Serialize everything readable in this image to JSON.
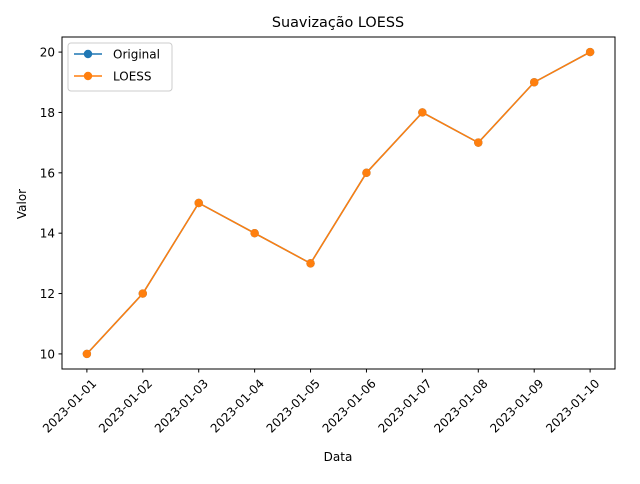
{
  "chart_data": {
    "type": "line",
    "title": "Suavização LOESS",
    "xlabel": "Data",
    "ylabel": "Valor",
    "categories": [
      "2023-01-01",
      "2023-01-02",
      "2023-01-03",
      "2023-01-04",
      "2023-01-05",
      "2023-01-06",
      "2023-01-07",
      "2023-01-08",
      "2023-01-09",
      "2023-01-10"
    ],
    "series": [
      {
        "name": "Original",
        "color": "#1f77b4",
        "marker": "circle",
        "values": [
          10,
          12,
          15,
          14,
          13,
          16,
          18,
          17,
          19,
          20
        ]
      },
      {
        "name": "LOESS",
        "color": "#ff7f0e",
        "marker": "circle",
        "values": [
          10,
          12,
          15,
          14,
          13,
          16,
          18,
          17,
          19,
          20
        ]
      }
    ],
    "ylim": [
      9.5,
      20.5
    ],
    "yticks": [
      10,
      12,
      14,
      16,
      18,
      20
    ],
    "xtick_rotation": 45,
    "grid": false,
    "legend_position": "upper-left"
  }
}
